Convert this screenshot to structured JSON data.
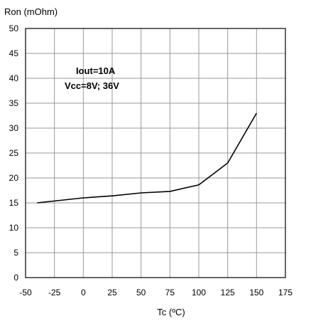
{
  "chart_data": {
    "type": "line",
    "xlabel": "Tc (ºC)",
    "ylabel": "Ron (mOhm)",
    "xlim": [
      -50,
      175
    ],
    "ylim": [
      0,
      50
    ],
    "xticks": [
      "-50",
      "-25",
      "0",
      "25",
      "50",
      "75",
      "100",
      "125",
      "150",
      "175"
    ],
    "yticks": [
      "0",
      "5",
      "10",
      "15",
      "20",
      "25",
      "30",
      "35",
      "40",
      "45",
      "50"
    ],
    "grid": true,
    "annotations": [
      "Iout=10A",
      "Vcc=8V; 36V"
    ],
    "series": [
      {
        "x": [
          -40,
          0,
          25,
          50,
          75,
          100,
          125,
          150
        ],
        "y": [
          15,
          16,
          16.4,
          17,
          17.3,
          18.6,
          23,
          33
        ]
      }
    ]
  }
}
